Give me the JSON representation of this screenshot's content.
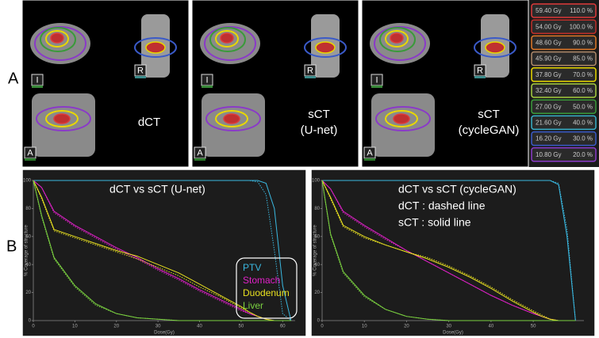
{
  "panel_labels": [
    "A",
    "B"
  ],
  "panel_a": {
    "images": [
      {
        "label": [
          "dCT"
        ]
      },
      {
        "label": [
          "sCT",
          "(U-net)"
        ]
      },
      {
        "label": [
          "sCT",
          "(cycleGAN)"
        ]
      }
    ],
    "view_labels": [
      "I",
      "R",
      "A"
    ],
    "dose_legend": [
      {
        "dose": "59.40 Gy",
        "percent": "110.0 %",
        "color": "#e03a3a"
      },
      {
        "dose": "54.00 Gy",
        "percent": "100.0 %",
        "color": "#c0302a"
      },
      {
        "dose": "48.60 Gy",
        "percent": "90.0 %",
        "color": "#e07828"
      },
      {
        "dose": "45.90 Gy",
        "percent": "85.0 %",
        "color": "#b08a6a"
      },
      {
        "dose": "37.80 Gy",
        "percent": "70.0 %",
        "color": "#e8d800"
      },
      {
        "dose": "32.40 Gy",
        "percent": "60.0 %",
        "color": "#a8d040"
      },
      {
        "dose": "27.00 Gy",
        "percent": "50.0 %",
        "color": "#3a9a3a"
      },
      {
        "dose": "21.60 Gy",
        "percent": "40.0 %",
        "color": "#38b0c8"
      },
      {
        "dose": "16.20 Gy",
        "percent": "30.0 %",
        "color": "#3a5ac8"
      },
      {
        "dose": "10.80 Gy",
        "percent": "20.0 %",
        "color": "#8a3ac8"
      }
    ]
  },
  "chart_data": [
    {
      "type": "line",
      "annotations": [
        "dCT vs sCT (U-net)"
      ],
      "x_label": "Dose(Gy)",
      "y_label": "% Coverage of structure",
      "x": [
        0,
        2,
        5,
        10,
        15,
        20,
        25,
        30,
        35,
        40,
        45,
        50,
        52,
        54,
        56,
        58,
        60,
        62
      ],
      "xlim": [
        0,
        63
      ],
      "ylim": [
        0,
        100
      ],
      "xticks": [
        0,
        10,
        20,
        30,
        40,
        50,
        60
      ],
      "yticks": [
        0,
        20,
        40,
        60,
        80,
        100
      ],
      "series": [
        {
          "name": "PTV",
          "color": "#3ab8e0",
          "values": [
            100,
            100,
            100,
            100,
            100,
            100,
            100,
            100,
            100,
            100,
            100,
            100,
            100,
            100,
            98,
            80,
            25,
            0
          ],
          "dct_values": [
            100,
            100,
            100,
            100,
            100,
            100,
            100,
            100,
            100,
            100,
            100,
            100,
            100,
            99,
            90,
            50,
            5,
            0
          ]
        },
        {
          "name": "Stomach",
          "color": "#e020c8",
          "values": [
            100,
            95,
            78,
            68,
            60,
            52,
            45,
            37,
            30,
            22,
            15,
            8,
            5,
            3,
            1,
            0,
            0,
            0
          ],
          "dct_values": [
            100,
            95,
            77,
            67,
            59,
            51,
            44,
            36,
            29,
            21,
            14,
            7,
            5,
            3,
            1,
            0,
            0,
            0
          ]
        },
        {
          "name": "Duodenum",
          "color": "#e8e020",
          "values": [
            100,
            88,
            65,
            60,
            55,
            50,
            46,
            40,
            34,
            26,
            18,
            10,
            6,
            3,
            1,
            0,
            0,
            0
          ],
          "dct_values": [
            100,
            87,
            64,
            59,
            54,
            49,
            44,
            38,
            32,
            24,
            17,
            9,
            6,
            3,
            1,
            0,
            0,
            0
          ]
        },
        {
          "name": "Liver",
          "color": "#7ad040",
          "values": [
            100,
            75,
            45,
            25,
            12,
            5,
            2,
            1,
            0,
            0,
            0,
            0,
            0,
            0,
            0,
            0,
            0,
            0
          ],
          "dct_values": [
            100,
            74,
            44,
            24,
            11,
            5,
            2,
            1,
            0,
            0,
            0,
            0,
            0,
            0,
            0,
            0,
            0,
            0
          ]
        }
      ]
    },
    {
      "type": "line",
      "annotations": [
        "dCT vs sCT (cycleGAN)",
        "dCT : dashed line",
        "sCT : solid line"
      ],
      "x_label": "Dose(Gy)",
      "y_label": "% Coverage of structure",
      "x": [
        0,
        2,
        5,
        10,
        15,
        20,
        25,
        30,
        35,
        40,
        45,
        50,
        52,
        54,
        56,
        58,
        60
      ],
      "xlim": [
        0,
        62
      ],
      "ylim": [
        0,
        100
      ],
      "xticks": [
        0,
        10,
        20,
        30,
        40,
        50
      ],
      "yticks": [
        0,
        20,
        40,
        60,
        80,
        100
      ],
      "series": [
        {
          "color": "#3ab8e0",
          "values": [
            100,
            100,
            100,
            100,
            100,
            100,
            100,
            100,
            100,
            100,
            100,
            100,
            100,
            100,
            97,
            60,
            0
          ],
          "dct_values": [
            100,
            100,
            100,
            100,
            100,
            100,
            100,
            100,
            100,
            100,
            100,
            100,
            100,
            100,
            98,
            65,
            0
          ]
        },
        {
          "color": "#e020c8",
          "values": [
            100,
            94,
            78,
            68,
            59,
            50,
            42,
            34,
            26,
            18,
            11,
            5,
            3,
            1,
            0,
            0,
            0
          ],
          "dct_values": [
            100,
            94,
            77,
            67,
            58,
            50,
            42,
            34,
            26,
            18,
            11,
            5,
            3,
            1,
            0,
            0,
            0
          ]
        },
        {
          "color": "#e8e020",
          "values": [
            100,
            88,
            68,
            60,
            54,
            49,
            44,
            38,
            31,
            23,
            14,
            6,
            3,
            1,
            0,
            0,
            0
          ],
          "dct_values": [
            100,
            87,
            67,
            59,
            54,
            49,
            45,
            39,
            32,
            24,
            15,
            7,
            4,
            1,
            0,
            0,
            0
          ]
        },
        {
          "color": "#7ad040",
          "values": [
            100,
            62,
            35,
            18,
            8,
            3,
            1,
            0,
            0,
            0,
            0,
            0,
            0,
            0,
            0,
            0,
            0
          ],
          "dct_values": [
            100,
            61,
            34,
            17,
            8,
            3,
            1,
            0,
            0,
            0,
            0,
            0,
            0,
            0,
            0,
            0,
            0
          ]
        }
      ]
    }
  ]
}
